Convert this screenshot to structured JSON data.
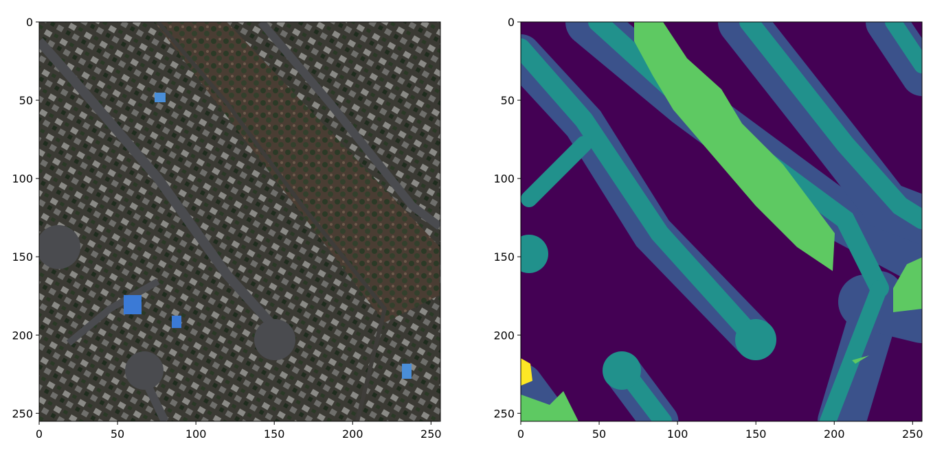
{
  "panels": [
    {
      "kind": "satellite-image",
      "x_ticks": [
        "0",
        "50",
        "100",
        "150",
        "200",
        "250"
      ],
      "y_ticks": [
        "0",
        "50",
        "100",
        "150",
        "200",
        "250"
      ]
    },
    {
      "kind": "segmentation-mask",
      "x_ticks": [
        "0",
        "50",
        "100",
        "150",
        "200",
        "250"
      ],
      "y_ticks": [
        "0",
        "50",
        "100",
        "150",
        "200",
        "250"
      ]
    }
  ],
  "colors": {
    "background": "#440154",
    "road_buffer": "#3b528b",
    "road": "#21918c",
    "vegetation": "#5ec962",
    "highlight": "#fde725",
    "satellite_base": "#3d3a33"
  }
}
